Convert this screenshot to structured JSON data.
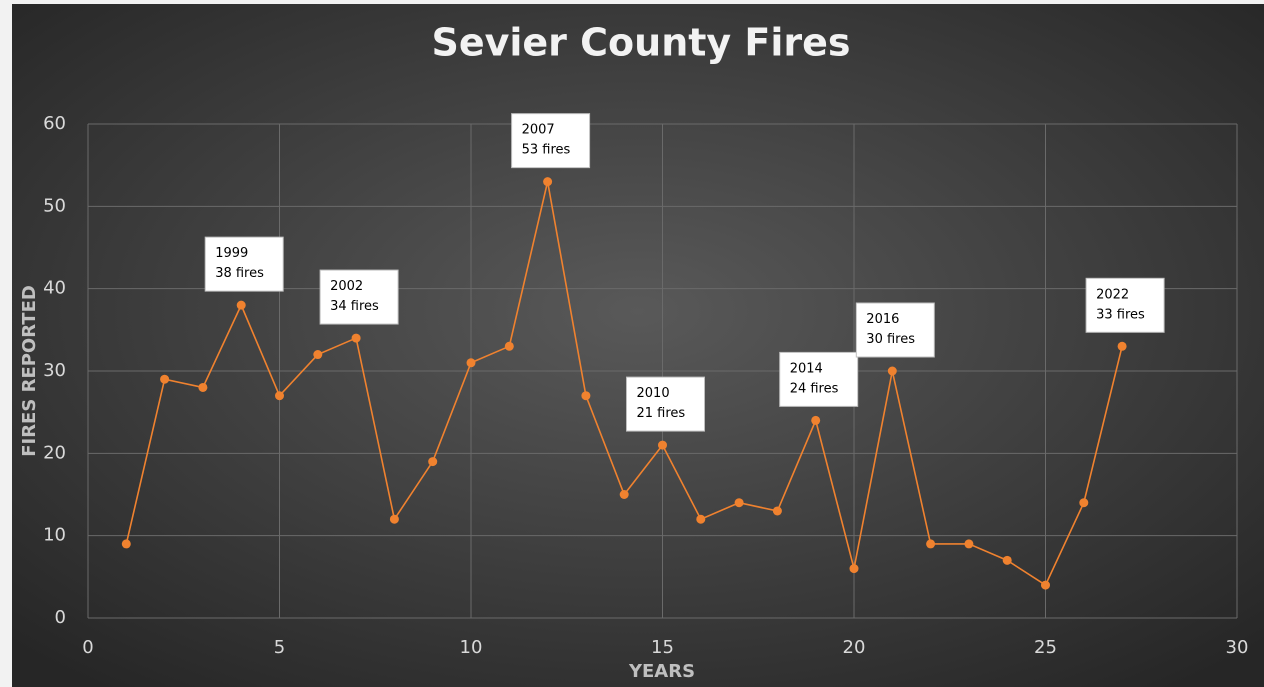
{
  "chart_data": {
    "type": "line",
    "title": "Sevier County Fires",
    "xlabel": "YEARS",
    "ylabel": "FIRES REPORTED",
    "x": [
      1,
      2,
      3,
      4,
      5,
      6,
      7,
      8,
      9,
      10,
      11,
      12,
      13,
      14,
      15,
      16,
      17,
      18,
      19,
      20,
      21,
      22,
      23,
      24,
      25,
      26,
      27
    ],
    "series": [
      {
        "name": "Fires",
        "color": "#f0822f",
        "values": [
          9,
          29,
          28,
          38,
          27,
          32,
          34,
          12,
          19,
          31,
          33,
          53,
          27,
          15,
          21,
          12,
          14,
          13,
          24,
          6,
          30,
          9,
          9,
          7,
          4,
          14,
          33
        ]
      }
    ],
    "xlim": [
      0,
      30
    ],
    "xticks": [
      0,
      5,
      10,
      15,
      20,
      25,
      30
    ],
    "ylim": [
      0,
      60
    ],
    "yticks": [
      0,
      10,
      20,
      30,
      40,
      50,
      60
    ],
    "grid": true,
    "annotations": [
      {
        "x": 4,
        "y": 38,
        "lines": [
          "1999",
          "38 fires"
        ]
      },
      {
        "x": 7,
        "y": 34,
        "lines": [
          "2002",
          "34 fires"
        ]
      },
      {
        "x": 12,
        "y": 53,
        "lines": [
          "2007",
          "53 fires"
        ]
      },
      {
        "x": 15,
        "y": 21,
        "lines": [
          "2010",
          "21 fires"
        ]
      },
      {
        "x": 19,
        "y": 24,
        "lines": [
          "2014",
          "24 fires"
        ]
      },
      {
        "x": 21,
        "y": 30,
        "lines": [
          "2016",
          "30 fires"
        ]
      },
      {
        "x": 27,
        "y": 33,
        "lines": [
          "2022",
          "33 fires"
        ]
      }
    ]
  }
}
